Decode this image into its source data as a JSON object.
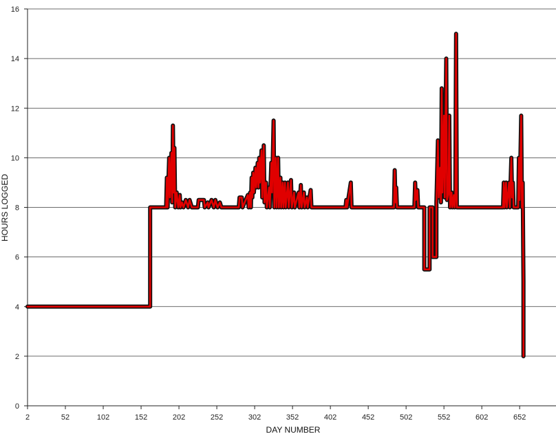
{
  "chart_data": {
    "type": "line",
    "title": "",
    "xlabel": "DAY NUMBER",
    "ylabel": "HOURS LOGGED",
    "xlim": [
      2,
      700
    ],
    "ylim": [
      0,
      16
    ],
    "x_ticks": [
      "2",
      "52",
      "102",
      "152",
      "202",
      "252",
      "302",
      "352",
      "402",
      "452",
      "502",
      "552",
      "602",
      "652"
    ],
    "y_ticks": [
      "0",
      "2",
      "4",
      "6",
      "8",
      "10",
      "12",
      "14",
      "16"
    ],
    "grid": "horizontal",
    "legend": "none",
    "series": [
      {
        "color": "#e00000",
        "outline_color": "#111111",
        "points": [
          [
            2,
            4
          ],
          [
            164,
            4
          ],
          [
            164,
            8
          ],
          [
            185,
            8
          ],
          [
            186,
            9.2
          ],
          [
            187,
            8
          ],
          [
            189,
            10
          ],
          [
            190,
            8.4
          ],
          [
            192,
            10.2
          ],
          [
            193,
            8.2
          ],
          [
            194,
            11.3
          ],
          [
            195,
            8.6
          ],
          [
            196,
            10.4
          ],
          [
            197,
            8
          ],
          [
            199,
            8.6
          ],
          [
            201,
            8
          ],
          [
            203,
            8.5
          ],
          [
            204,
            8
          ],
          [
            206,
            8.2
          ],
          [
            208,
            8
          ],
          [
            211,
            8.3
          ],
          [
            214,
            8
          ],
          [
            216,
            8.3
          ],
          [
            219,
            8
          ],
          [
            227,
            8
          ],
          [
            228,
            8.3
          ],
          [
            235,
            8.3
          ],
          [
            236,
            8
          ],
          [
            240,
            8.2
          ],
          [
            241,
            8
          ],
          [
            245,
            8.3
          ],
          [
            248,
            8
          ],
          [
            250,
            8.3
          ],
          [
            253,
            8
          ],
          [
            256,
            8.2
          ],
          [
            258,
            8
          ],
          [
            281,
            8
          ],
          [
            282,
            8.4
          ],
          [
            285,
            8.4
          ],
          [
            286,
            8
          ],
          [
            293,
            8.5
          ],
          [
            294,
            8
          ],
          [
            296,
            8.6
          ],
          [
            297,
            8
          ],
          [
            298,
            9.2
          ],
          [
            299,
            8.4
          ],
          [
            300,
            9.4
          ],
          [
            301,
            8.6
          ],
          [
            303,
            9.6
          ],
          [
            304,
            8.8
          ],
          [
            306,
            9.8
          ],
          [
            307,
            8.8
          ],
          [
            308,
            10
          ],
          [
            309,
            9
          ],
          [
            311,
            10.3
          ],
          [
            312,
            8.4
          ],
          [
            314,
            10.5
          ],
          [
            315,
            8.2
          ],
          [
            317,
            9
          ],
          [
            318,
            8
          ],
          [
            321,
            8.8
          ],
          [
            322,
            8
          ],
          [
            324,
            9.8
          ],
          [
            325,
            8.6
          ],
          [
            327,
            11.5
          ],
          [
            328,
            8
          ],
          [
            330,
            10
          ],
          [
            331,
            8
          ],
          [
            333,
            10
          ],
          [
            334,
            8
          ],
          [
            336,
            9.2
          ],
          [
            337,
            8
          ],
          [
            339,
            9
          ],
          [
            340,
            8
          ],
          [
            342,
            9
          ],
          [
            343,
            8
          ],
          [
            346,
            9
          ],
          [
            347,
            8
          ],
          [
            350,
            9.1
          ],
          [
            351,
            8
          ],
          [
            354,
            8.6
          ],
          [
            355,
            8
          ],
          [
            360,
            8.6
          ],
          [
            361,
            8
          ],
          [
            363,
            8.9
          ],
          [
            364,
            8
          ],
          [
            367,
            8.6
          ],
          [
            368,
            8
          ],
          [
            371,
            8.4
          ],
          [
            372,
            8
          ],
          [
            376,
            8.7
          ],
          [
            377,
            8
          ],
          [
            422,
            8
          ],
          [
            423,
            8.3
          ],
          [
            424,
            8
          ],
          [
            429,
            9
          ],
          [
            430,
            8
          ],
          [
            486,
            8
          ],
          [
            487,
            9.5
          ],
          [
            488,
            8.2
          ],
          [
            489,
            8.8
          ],
          [
            490,
            8
          ],
          [
            513,
            8
          ],
          [
            514,
            9
          ],
          [
            515,
            8.3
          ],
          [
            517,
            8.7
          ],
          [
            518,
            8
          ],
          [
            526,
            8
          ],
          [
            526,
            5.5
          ],
          [
            533,
            5.5
          ],
          [
            533,
            8
          ],
          [
            537,
            8
          ],
          [
            537,
            6
          ],
          [
            542,
            6
          ],
          [
            542,
            8.2
          ],
          [
            544,
            10.7
          ],
          [
            545,
            8.4
          ],
          [
            547,
            9.6
          ],
          [
            548,
            8.2
          ],
          [
            549,
            12.8
          ],
          [
            550,
            8.6
          ],
          [
            552,
            11.7
          ],
          [
            553,
            8.4
          ],
          [
            555,
            14
          ],
          [
            556,
            8.3
          ],
          [
            558,
            8.6
          ],
          [
            559,
            11.7
          ],
          [
            560,
            8
          ],
          [
            562,
            8.6
          ],
          [
            563,
            8
          ],
          [
            565,
            8.5
          ],
          [
            566,
            8
          ],
          [
            567,
            8.5
          ],
          [
            568,
            15
          ],
          [
            569,
            8
          ],
          [
            630,
            8
          ],
          [
            631,
            9
          ],
          [
            632,
            8
          ],
          [
            634,
            9
          ],
          [
            635,
            8
          ],
          [
            638,
            9
          ],
          [
            639,
            8
          ],
          [
            641,
            10
          ],
          [
            642,
            8.4
          ],
          [
            643,
            9
          ],
          [
            644,
            8
          ],
          [
            650,
            8
          ],
          [
            651,
            10
          ],
          [
            652,
            8.3
          ],
          [
            654,
            11.7
          ],
          [
            655,
            8
          ],
          [
            656,
            9
          ],
          [
            657,
            5
          ],
          [
            657,
            2
          ]
        ]
      }
    ]
  }
}
